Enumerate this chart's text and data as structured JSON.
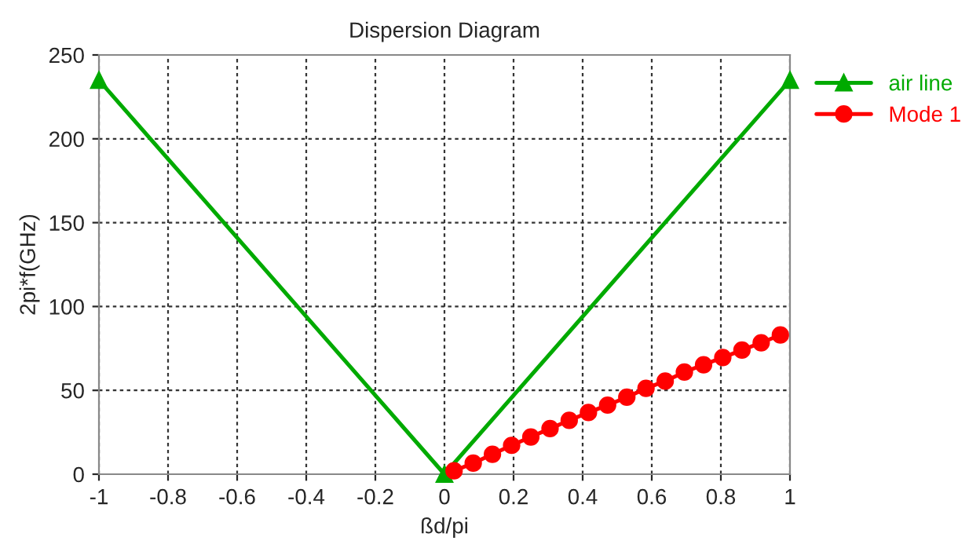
{
  "chart_data": {
    "type": "line",
    "title": "Dispersion Diagram",
    "xlabel": "ßd/pi",
    "ylabel": "2pi*f(GHz)",
    "xlim": [
      -1,
      1
    ],
    "xticks": [
      -1,
      -0.8,
      -0.6,
      -0.4,
      -0.2,
      0,
      0.2,
      0.4,
      0.6,
      0.8,
      1
    ],
    "ylim": [
      0,
      250
    ],
    "yticks": [
      0,
      50,
      100,
      150,
      200,
      250
    ],
    "grid": true,
    "legend": "top right",
    "line_style": "solid",
    "series": [
      {
        "name": "air line",
        "color": "#00aa00",
        "marker": "triangle",
        "x": [
          -1,
          0,
          1
        ],
        "values": [
          235,
          0,
          235
        ]
      },
      {
        "name": "Mode 1",
        "color": "#ff0000",
        "marker": "circle",
        "x": [
          0.0278,
          0.0833,
          0.1389,
          0.1944,
          0.25,
          0.3056,
          0.3611,
          0.4167,
          0.4722,
          0.5278,
          0.5833,
          0.6389,
          0.6944,
          0.75,
          0.8056,
          0.8611,
          0.9167,
          0.9722
        ],
        "values": [
          2,
          6.6,
          11.9,
          17.2,
          22.2,
          27.2,
          32.1,
          36.8,
          41.2,
          45.9,
          51.2,
          55.5,
          60.9,
          65.3,
          69.6,
          74,
          78.4,
          83
        ]
      }
    ]
  }
}
